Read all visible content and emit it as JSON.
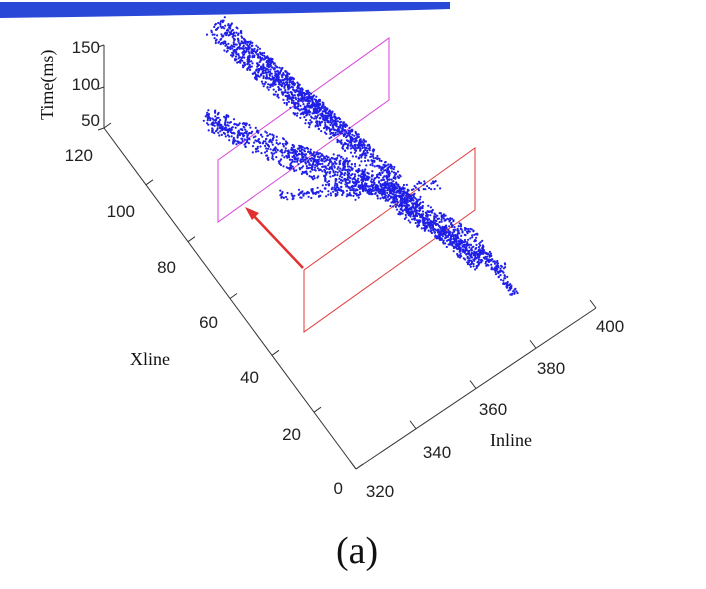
{
  "chart_data": {
    "type": "scatter",
    "title": "",
    "caption": "(a)",
    "axes": {
      "inline": {
        "label": "Inline",
        "ticks": [
          "320",
          "340",
          "360",
          "380",
          "400"
        ],
        "range": [
          320,
          400
        ]
      },
      "xline": {
        "label": "Xline",
        "ticks": [
          "0",
          "20",
          "40",
          "60",
          "80",
          "100",
          "120"
        ],
        "range": [
          0,
          120
        ]
      },
      "time": {
        "label": "Time(ms)",
        "ticks": [
          "50",
          "100",
          "150"
        ],
        "range": [
          50,
          150
        ]
      }
    },
    "series": [
      {
        "color": "#1f1fe6",
        "description_points": [
          [
            330,
            110,
            150
          ],
          [
            335,
            105,
            140
          ],
          [
            340,
            100,
            120
          ],
          [
            345,
            95,
            110
          ],
          [
            350,
            85,
            100
          ],
          [
            355,
            75,
            95
          ],
          [
            360,
            65,
            90
          ],
          [
            365,
            55,
            85
          ],
          [
            370,
            45,
            80
          ],
          [
            375,
            35,
            75
          ],
          [
            380,
            30,
            70
          ],
          [
            385,
            25,
            65
          ]
        ]
      }
    ],
    "slices": [
      {
        "color": "#d942d9",
        "inline": 345
      },
      {
        "color": "#e03a3a",
        "inline": 365
      }
    ],
    "arrow_color": "#e03030",
    "top_bar_color": "#2040c8",
    "grid": false
  }
}
